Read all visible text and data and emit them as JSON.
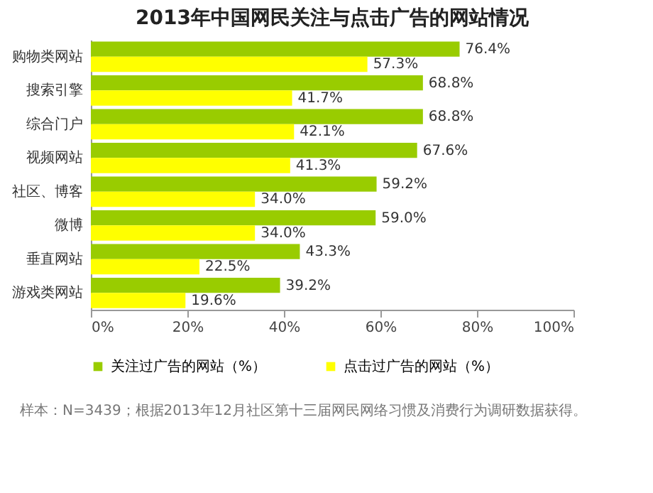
{
  "chart_data": {
    "type": "bar",
    "orientation": "horizontal",
    "title": "2013年中国网民关注与点击广告的网站情况",
    "categories": [
      "购物类网站",
      "搜索引擎",
      "综合门户",
      "视频网站",
      "社区、博客",
      "微博",
      "垂直网站",
      "游戏类网站"
    ],
    "series": [
      {
        "name": "关注过广告的网站（%）",
        "color": "#99cc00",
        "values": [
          76.4,
          68.8,
          68.8,
          67.6,
          59.2,
          59.0,
          43.3,
          39.2
        ],
        "value_labels": [
          "76.4%",
          "68.8%",
          "68.8%",
          "67.6%",
          "59.2%",
          "59.0%",
          "43.3%",
          "39.2%"
        ]
      },
      {
        "name": "点击过广告的网站（%）",
        "color": "#ffff00",
        "values": [
          57.3,
          41.7,
          42.1,
          41.3,
          34.0,
          34.0,
          22.5,
          19.6
        ],
        "value_labels": [
          "57.3%",
          "41.7%",
          "42.1%",
          "41.3%",
          "34.0%",
          "34.0%",
          "22.5%",
          "19.6%"
        ]
      }
    ],
    "xlim": [
      0,
      100
    ],
    "xticks": [
      {
        "value": 0,
        "label": "0%"
      },
      {
        "value": 20,
        "label": "20%"
      },
      {
        "value": 40,
        "label": "40%"
      },
      {
        "value": 60,
        "label": "60%"
      },
      {
        "value": 80,
        "label": "80%"
      },
      {
        "value": 100,
        "label": "100%"
      }
    ],
    "grid": false,
    "legend": "bottom",
    "annotations": [
      "样本：N=3439；根据2013年12月社区第十三届网民网络习惯及消费行为调研数据获得。"
    ]
  }
}
